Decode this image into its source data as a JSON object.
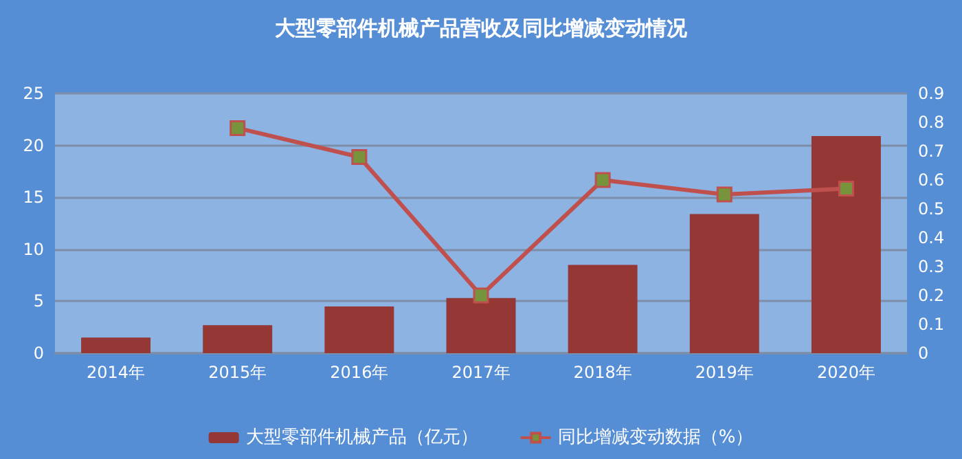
{
  "chart_data": {
    "type": "bar",
    "title": "大型零部件机械产品营收及同比增减变动情况",
    "categories": [
      "2014年",
      "2015年",
      "2016年",
      "2017年",
      "2018年",
      "2019年",
      "2020年"
    ],
    "series": [
      {
        "name": "大型零部件机械产品（亿元）",
        "color": "#953735",
        "values": [
          1.5,
          2.7,
          4.5,
          5.3,
          8.5,
          13.4,
          20.9
        ]
      },
      {
        "name": "同比增减变动数据（%）",
        "type": "line",
        "axis": "y2",
        "color": "#c0504d",
        "marker": "square",
        "values": [
          null,
          0.78,
          0.68,
          0.2,
          0.6,
          0.55,
          0.57
        ]
      }
    ],
    "ylim": [
      0,
      25
    ],
    "yticks": [
      0,
      5,
      10,
      15,
      20,
      25
    ],
    "y2lim": [
      0,
      0.9
    ],
    "y2ticks": [
      0,
      0.1,
      0.2,
      0.3,
      0.4,
      0.5,
      0.6,
      0.7,
      0.8,
      0.9
    ],
    "grid": "y",
    "legend": "bottom"
  }
}
